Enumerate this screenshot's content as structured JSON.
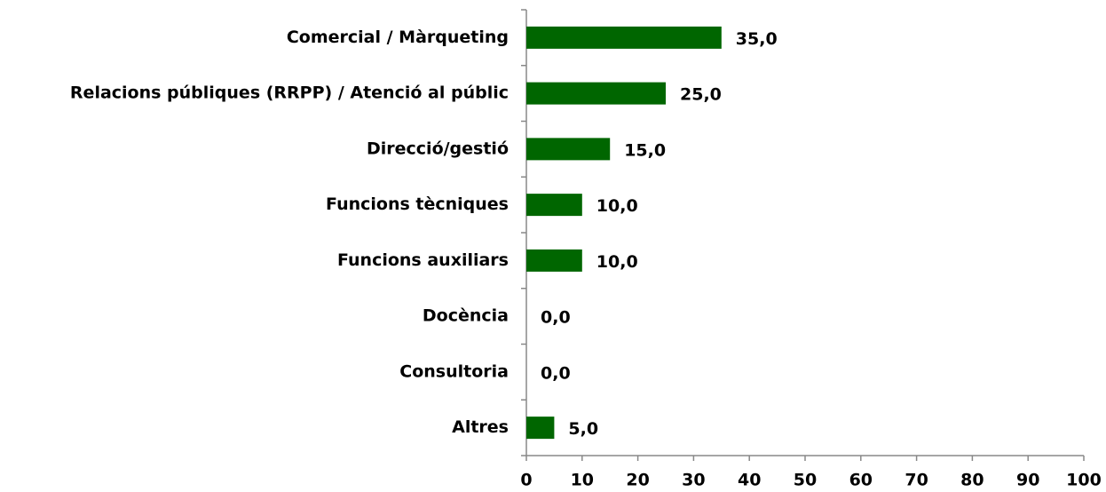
{
  "chart_data": {
    "type": "bar",
    "orientation": "horizontal",
    "categories": [
      "Comercial / Màrqueting",
      "Relacions públiques (RRPP) / Atenció al públic",
      "Direcció/gestió",
      "Funcions tècniques",
      "Funcions auxiliars",
      "Docència",
      "Consultoria",
      "Altres"
    ],
    "values": [
      35,
      25,
      15,
      10,
      10,
      0,
      0,
      5
    ],
    "value_labels": [
      "35,0",
      "25,0",
      "15,0",
      "10,0",
      "10,0",
      "0,0",
      "0,0",
      "5,0"
    ],
    "color": "#006600",
    "xlim": [
      0,
      100
    ],
    "xticks": [
      0,
      10,
      20,
      30,
      40,
      50,
      60,
      70,
      80,
      90,
      100
    ]
  }
}
